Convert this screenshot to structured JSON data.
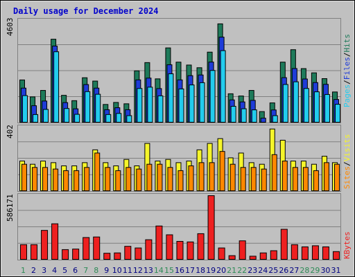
{
  "colors": {
    "hits": "#1e7a5a",
    "files": "#1e3cd8",
    "pages": "#22ccee",
    "visits": "#f5f52a",
    "sites": "#ff8800",
    "kbytes": "#ee2020",
    "weekend": "#2e8b57",
    "weekday": "#000080"
  },
  "chart_data": {
    "type": "bar",
    "title": "Daily usage for December 2024",
    "categories": [
      "1",
      "2",
      "3",
      "4",
      "5",
      "6",
      "7",
      "8",
      "9",
      "10",
      "11",
      "12",
      "13",
      "14",
      "15",
      "16",
      "17",
      "18",
      "19",
      "20",
      "21",
      "22",
      "23",
      "24",
      "25",
      "26",
      "27",
      "28",
      "29",
      "30",
      "31"
    ],
    "weekend_days": [
      "1",
      "7",
      "8",
      "14",
      "15",
      "21",
      "22",
      "28",
      "29"
    ],
    "panels": [
      {
        "id": "hits-files-pages",
        "scale_label": "4603",
        "ymax": 4603,
        "legend": [
          "Pages",
          "Files",
          "Hits"
        ],
        "series": [
          {
            "name": "Hits",
            "values": [
              1930,
              1170,
              1460,
              3760,
              1240,
              1000,
              2030,
              1880,
              830,
              920,
              860,
              2340,
              2710,
              1980,
              3370,
              2730,
              2600,
              2480,
              3180,
              4450,
              1310,
              1210,
              1460,
              510,
              900,
              2730,
              3290,
              2440,
              2250,
              1990,
              1390
            ]
          },
          {
            "name": "Files",
            "values": [
              1750,
              960,
              1170,
              3640,
              1100,
              820,
              1910,
              1750,
              780,
              870,
              780,
              2120,
              2200,
              1730,
              2800,
              2120,
              2310,
              2340,
              2920,
              4040,
              1220,
              1130,
              1200,
              400,
              770,
              2220,
              2630,
              2160,
              2000,
              1920,
              1240
            ]
          },
          {
            "name": "Pages",
            "values": [
              1600,
              750,
              980,
              3570,
              1020,
              760,
              1780,
              1660,
              750,
              800,
              700,
              1920,
              1980,
              1590,
              2580,
              1900,
              2080,
              2180,
              2730,
              3620,
              1120,
              1010,
              960,
              350,
              700,
              2100,
              2220,
              1920,
              1770,
              1650,
              1210
            ]
          }
        ]
      },
      {
        "id": "visits-sites",
        "scale_label": "402",
        "ymax": 402,
        "legend": [
          "Sites",
          "Visits"
        ],
        "series": [
          {
            "name": "Visits",
            "values": [
              190,
              170,
              190,
              180,
              160,
              160,
              180,
              260,
              180,
              160,
              200,
              160,
              300,
              190,
              200,
              180,
              190,
              260,
              300,
              330,
              210,
              240,
              180,
              170,
              390,
              320,
              190,
              190,
              170,
              220,
              180
            ]
          },
          {
            "name": "Sites",
            "values": [
              170,
              150,
              150,
              140,
              130,
              130,
              150,
              240,
              150,
              130,
              150,
              140,
              170,
              170,
              150,
              130,
              160,
              180,
              180,
              250,
              170,
              150,
              150,
              140,
              230,
              190,
              150,
              150,
              130,
              180,
              170
            ]
          }
        ]
      },
      {
        "id": "kbytes",
        "scale_label": "586171",
        "ymax": 586171,
        "legend": [
          "KBytes"
        ],
        "series": [
          {
            "name": "KBytes",
            "values": [
              140000,
              140000,
              270000,
              330000,
              95000,
              100000,
              205000,
              210000,
              62000,
              65000,
              125000,
              110000,
              185000,
              310000,
              230000,
              170000,
              165000,
              240000,
              586000,
              110000,
              40000,
              175000,
              35000,
              65000,
              85000,
              280000,
              140000,
              120000,
              130000,
              120000,
              77000
            ]
          }
        ]
      }
    ]
  }
}
